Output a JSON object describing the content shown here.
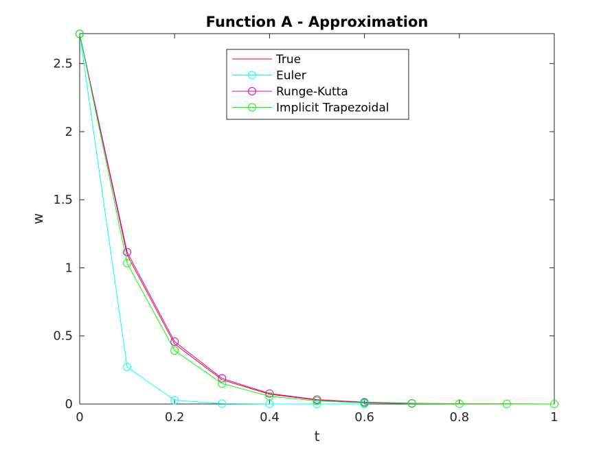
{
  "chart_data": {
    "type": "line",
    "title": "Function A - Approximation",
    "xlabel": "t",
    "ylabel": "w",
    "xlim": [
      0,
      1
    ],
    "ylim": [
      0,
      2.72
    ],
    "xticks": [
      0,
      0.2,
      0.4,
      0.6,
      0.8,
      1
    ],
    "xtick_labels": [
      "0",
      "0.2",
      "0.4",
      "0.6",
      "0.8",
      "1"
    ],
    "yticks": [
      0,
      0.5,
      1,
      1.5,
      2,
      2.5
    ],
    "ytick_labels": [
      "0",
      "0.5",
      "1",
      "1.5",
      "2",
      "2.5"
    ],
    "grid": false,
    "legend_position": "top-center",
    "series": [
      {
        "name": "True",
        "color": "#ff0000",
        "marker": "none",
        "x": [
          0,
          0.1,
          0.2,
          0.3,
          0.4,
          0.5,
          0.6,
          0.7,
          0.8,
          0.9,
          1.0
        ],
        "y": [
          2.718,
          1.095,
          0.441,
          0.178,
          0.072,
          0.029,
          0.012,
          0.005,
          0.002,
          0.001,
          0.0003
        ]
      },
      {
        "name": "Euler",
        "color": "#00ffff",
        "marker": "circle",
        "x": [
          0,
          0.1,
          0.2,
          0.3,
          0.4,
          0.5,
          0.6
        ],
        "y": [
          2.718,
          0.272,
          0.027,
          0.003,
          0.0003,
          0.0,
          0.0
        ]
      },
      {
        "name": "Runge-Kutta",
        "color": "#cc00cc",
        "marker": "circle",
        "x": [
          0,
          0.1,
          0.2,
          0.3,
          0.4,
          0.5,
          0.6,
          0.7
        ],
        "y": [
          2.718,
          1.115,
          0.458,
          0.188,
          0.077,
          0.032,
          0.013,
          0.005
        ]
      },
      {
        "name": "Implicit Trapezoidal",
        "color": "#00ff00",
        "marker": "circle",
        "x": [
          0,
          0.1,
          0.2,
          0.3,
          0.4,
          0.5,
          0.6,
          0.7,
          0.8,
          0.9,
          1.0
        ],
        "y": [
          2.718,
          1.034,
          0.393,
          0.15,
          0.057,
          0.022,
          0.008,
          0.003,
          0.001,
          0.0004,
          0.0002
        ]
      }
    ]
  }
}
